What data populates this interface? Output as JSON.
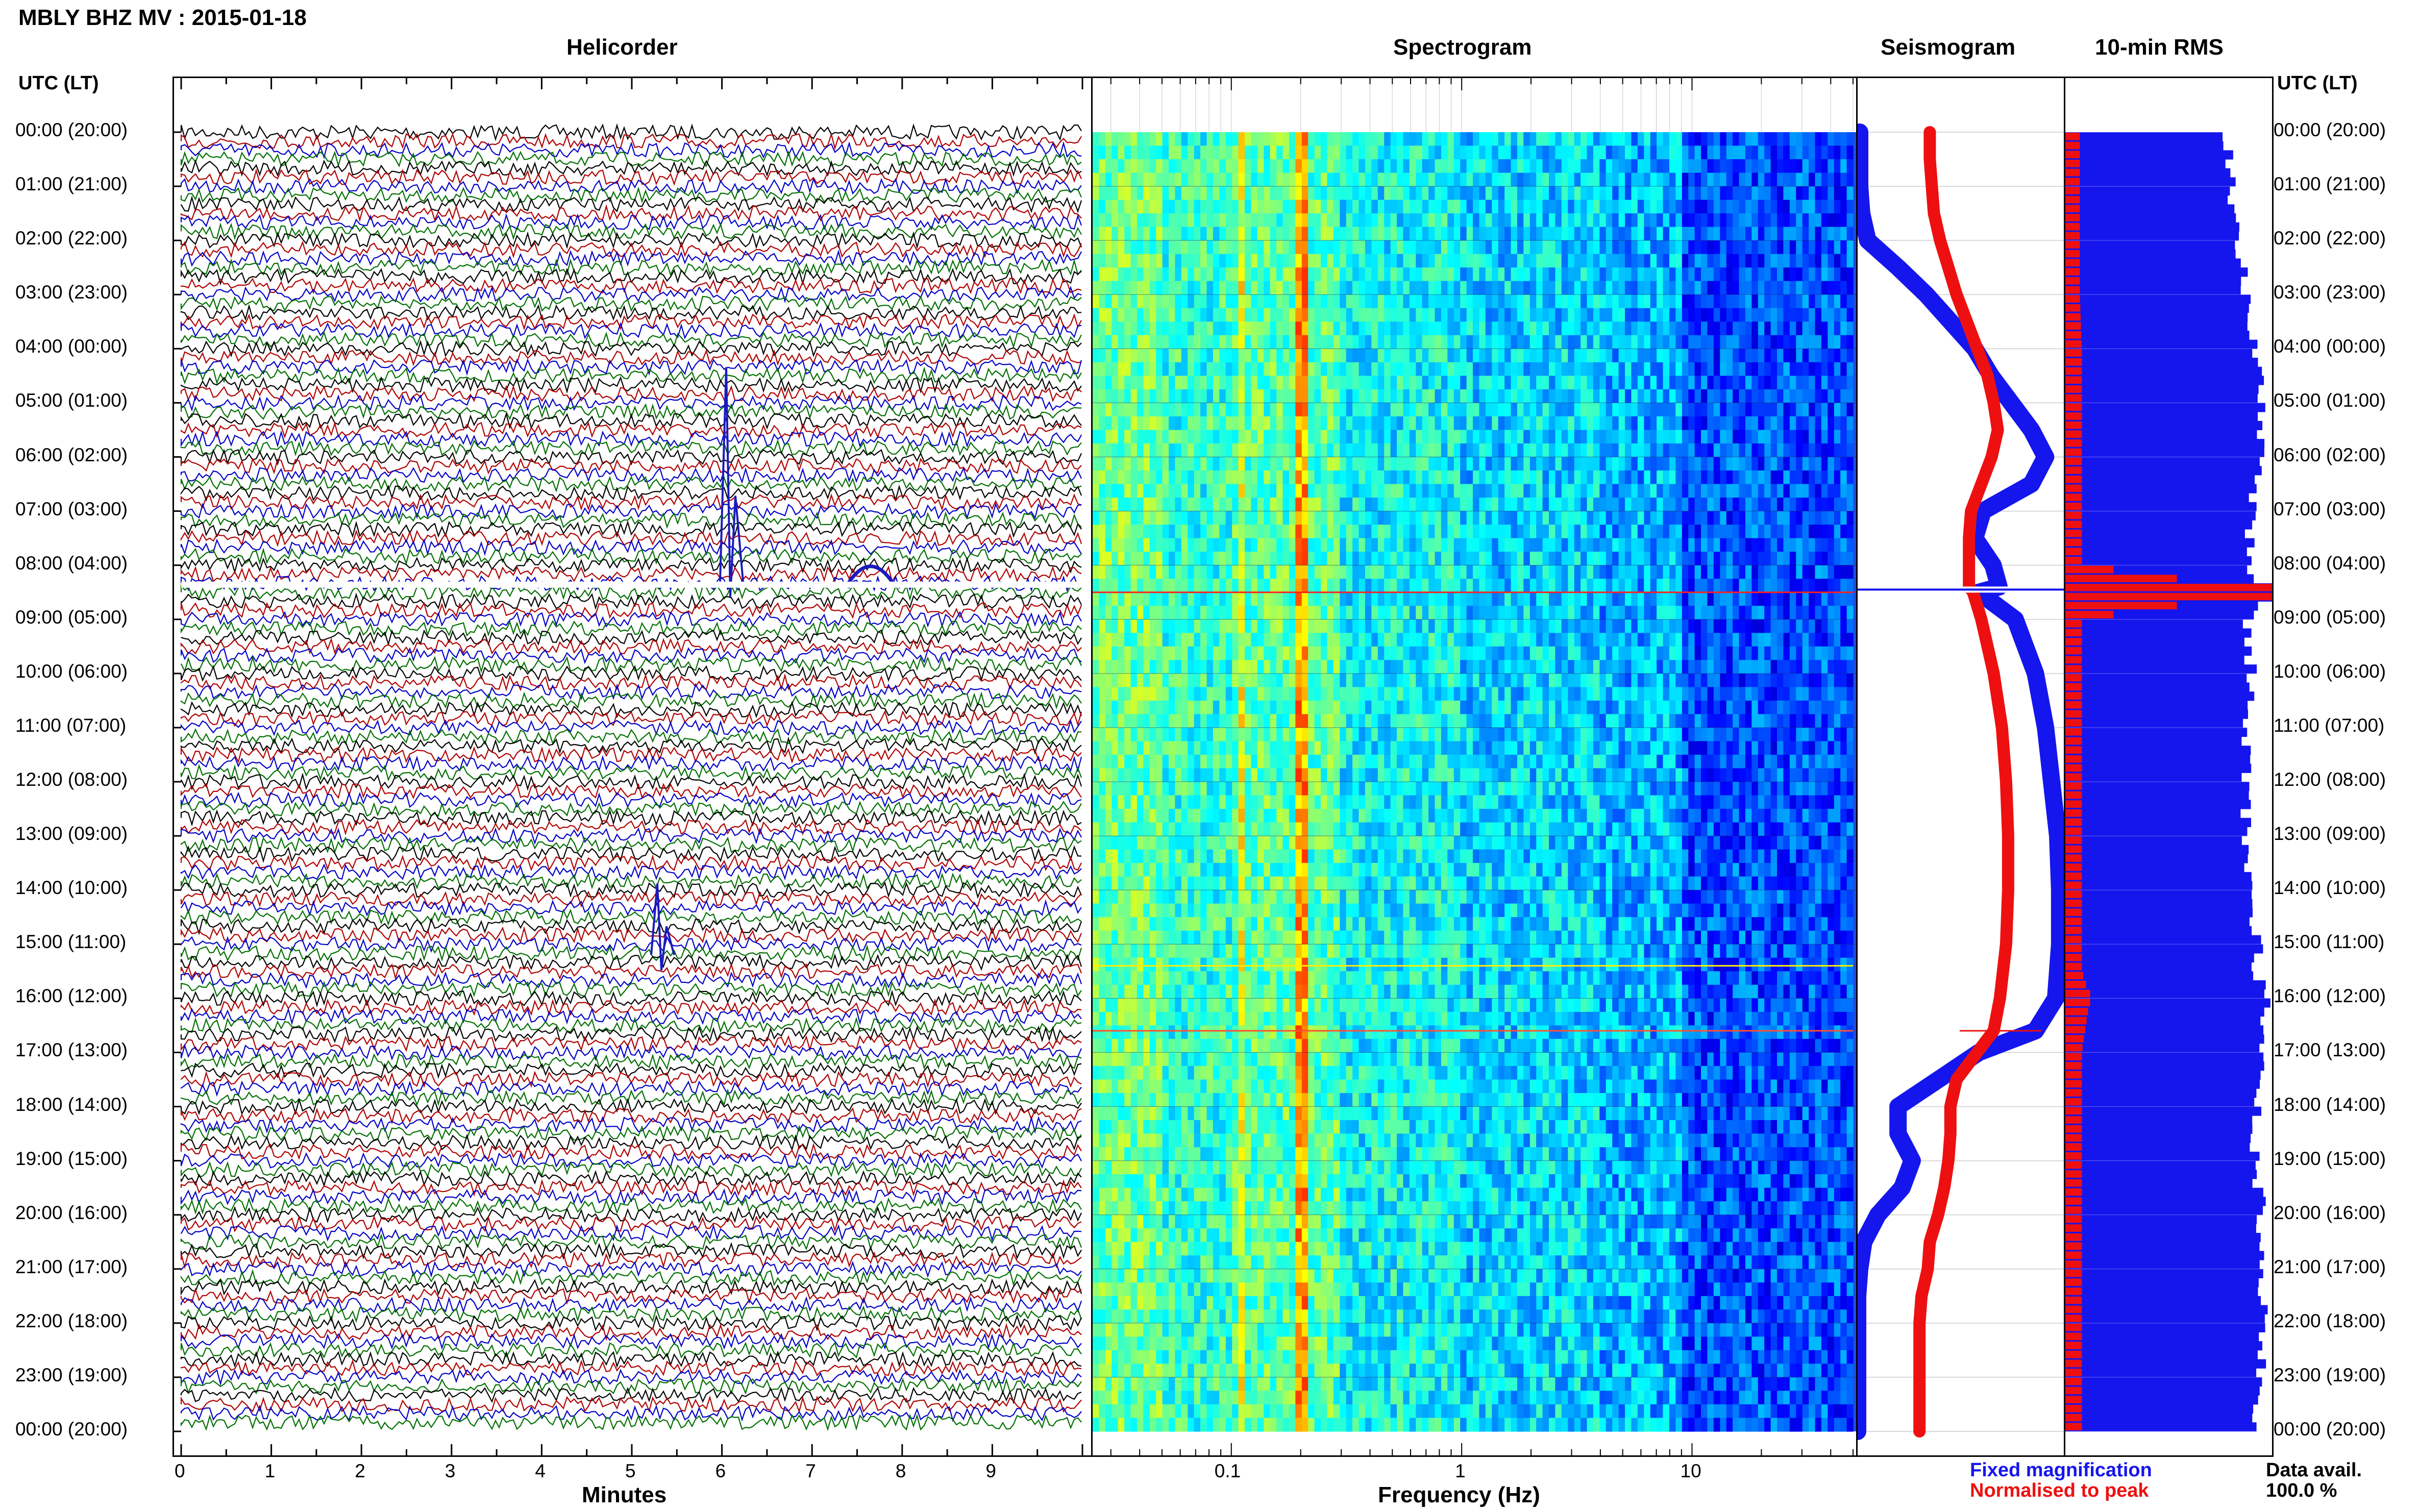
{
  "title": "MBLY BHZ MV : 2015-01-18",
  "headers": {
    "helicorder": "Helicorder",
    "spectrogram": "Spectrogram",
    "seismogram": "Seismogram",
    "rms": "10-min RMS"
  },
  "utc_label": "UTC (LT)",
  "time_labels": [
    "00:00 (20:00)",
    "01:00 (21:00)",
    "02:00 (22:00)",
    "03:00 (23:00)",
    "04:00 (00:00)",
    "05:00 (01:00)",
    "06:00 (02:00)",
    "07:00 (03:00)",
    "08:00 (04:00)",
    "09:00 (05:00)",
    "10:00 (06:00)",
    "11:00 (07:00)",
    "12:00 (08:00)",
    "13:00 (09:00)",
    "14:00 (10:00)",
    "15:00 (11:00)",
    "16:00 (12:00)",
    "17:00 (13:00)",
    "18:00 (14:00)",
    "19:00 (15:00)",
    "20:00 (16:00)",
    "21:00 (17:00)",
    "22:00 (18:00)",
    "23:00 (19:00)",
    "00:00 (20:00)"
  ],
  "helicorder_axis": {
    "label": "Minutes",
    "ticks": [
      "0",
      "1",
      "2",
      "3",
      "4",
      "5",
      "6",
      "7",
      "8",
      "9"
    ]
  },
  "spectrogram_axis": {
    "label": "Frequency (Hz)",
    "ticks": [
      "0.1",
      "1",
      "10"
    ]
  },
  "legend": {
    "fixed": "Fixed magnification",
    "normalised": "Normalised to peak"
  },
  "data_avail": {
    "label": "Data avail.",
    "value": "100.0 %"
  },
  "colors": {
    "fixed": "#1515ee",
    "normalised": "#ee1010",
    "trace_black": "#000000",
    "trace_red": "#b00000",
    "trace_blue": "#0000c8",
    "trace_green": "#007000"
  },
  "chart_data": {
    "type": "heatmap",
    "station": "MBLY BHZ MV",
    "date": "2015-01-18",
    "helicorder": {
      "minutes_per_line": 10,
      "lines": 144,
      "trace_colors": [
        "black",
        "red",
        "blue",
        "green"
      ],
      "events_hours": [
        8.4,
        15.35,
        16.6
      ]
    },
    "spectrogram": {
      "x_scale": "log",
      "xlim": [
        0.025,
        50
      ],
      "peak_frequencies_hz": [
        0.2,
        0.11
      ],
      "events_hours": [
        8.5,
        15.4,
        16.6
      ]
    },
    "seismogram": {
      "hours": [
        0,
        0.5,
        1,
        1.5,
        2,
        2.5,
        3,
        3.5,
        4,
        4.5,
        5,
        5.5,
        6,
        6.5,
        7,
        7.5,
        8,
        8.4,
        8.5,
        9,
        10,
        11,
        12,
        13,
        14,
        15,
        16,
        16.6,
        17,
        17.5,
        18,
        18.5,
        19,
        19.5,
        20,
        20.5,
        21,
        21.5,
        22,
        23,
        24
      ],
      "fixed_magnification": [
        0.01,
        0.01,
        0.01,
        0.02,
        0.05,
        0.2,
        0.34,
        0.46,
        0.58,
        0.66,
        0.76,
        0.86,
        0.93,
        0.86,
        0.62,
        0.58,
        0.67,
        0.7,
        0.6,
        0.78,
        0.88,
        0.93,
        0.96,
        0.99,
        1.0,
        1.0,
        0.98,
        0.88,
        0.6,
        0.4,
        0.2,
        0.2,
        0.27,
        0.22,
        0.1,
        0.03,
        0.01,
        0.0,
        0.0,
        0.0,
        0.0
      ],
      "normalised_to_peak": [
        0.35,
        0.35,
        0.36,
        0.37,
        0.4,
        0.44,
        0.48,
        0.53,
        0.58,
        0.63,
        0.66,
        0.68,
        0.65,
        0.6,
        0.55,
        0.54,
        0.54,
        0.54,
        0.56,
        0.6,
        0.66,
        0.7,
        0.72,
        0.73,
        0.73,
        0.72,
        0.69,
        0.66,
        0.58,
        0.48,
        0.45,
        0.45,
        0.44,
        0.42,
        0.39,
        0.35,
        0.34,
        0.31,
        0.3,
        0.3,
        0.3
      ]
    },
    "rms": {
      "bins_per_hour": 6,
      "hours": [
        0,
        1,
        2,
        3,
        4,
        5,
        6,
        7,
        8,
        8.5,
        9,
        10,
        11,
        12,
        13,
        14,
        15,
        15.5,
        16,
        17,
        18,
        19,
        20,
        21,
        22,
        23,
        24
      ],
      "fixed_magnification": [
        0.78,
        0.8,
        0.82,
        0.88,
        0.92,
        0.95,
        0.96,
        0.9,
        0.88,
        1.0,
        0.88,
        0.9,
        0.88,
        0.88,
        0.87,
        0.89,
        0.94,
        0.92,
        0.97,
        0.95,
        0.92,
        0.92,
        0.95,
        0.93,
        0.96,
        0.94,
        0.93
      ],
      "normalised_to_peak": [
        0.07,
        0.07,
        0.07,
        0.07,
        0.08,
        0.08,
        0.08,
        0.08,
        0.08,
        1.0,
        0.08,
        0.08,
        0.08,
        0.08,
        0.08,
        0.08,
        0.08,
        0.08,
        0.12,
        0.08,
        0.08,
        0.08,
        0.08,
        0.08,
        0.08,
        0.08,
        0.08
      ]
    }
  }
}
